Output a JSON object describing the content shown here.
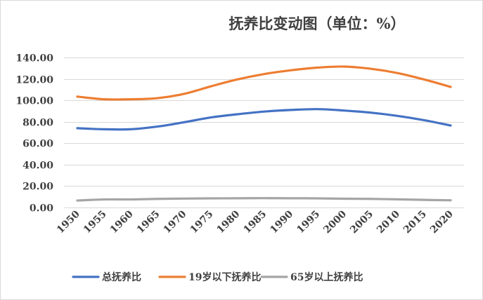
{
  "chart_data": {
    "type": "line",
    "title": "抚养比变动图（单位：%）",
    "xlabel": "",
    "ylabel": "",
    "ylim": [
      0,
      140
    ],
    "yticks": [
      "0.00",
      "20.00",
      "40.00",
      "60.00",
      "80.00",
      "100.00",
      "120.00",
      "140.00"
    ],
    "categories": [
      "1950",
      "1955",
      "1960",
      "1965",
      "1970",
      "1975",
      "1980",
      "1985",
      "1990",
      "1995",
      "2000",
      "2005",
      "2010",
      "2015",
      "2020"
    ],
    "grid": true,
    "legend_position": "bottom",
    "series": [
      {
        "name": "总抚养比",
        "color": "#4472C4",
        "values": [
          74.0,
          73.0,
          73.0,
          75.5,
          79.5,
          84.0,
          87.0,
          89.5,
          91.0,
          91.8,
          90.5,
          88.5,
          85.5,
          81.5,
          76.5
        ]
      },
      {
        "name": "19岁以下抚养比",
        "color": "#ED7D31",
        "values": [
          103.5,
          101.0,
          101.0,
          102.0,
          106.0,
          113.0,
          119.5,
          124.5,
          128.0,
          130.5,
          131.5,
          129.5,
          125.5,
          119.5,
          112.5
        ]
      },
      {
        "name": "65岁以上抚养比",
        "color": "#A5A5A5",
        "values": [
          6.5,
          7.5,
          7.5,
          8.0,
          8.3,
          8.5,
          8.6,
          8.7,
          8.6,
          8.5,
          8.2,
          8.0,
          7.6,
          7.1,
          6.7
        ]
      }
    ]
  }
}
